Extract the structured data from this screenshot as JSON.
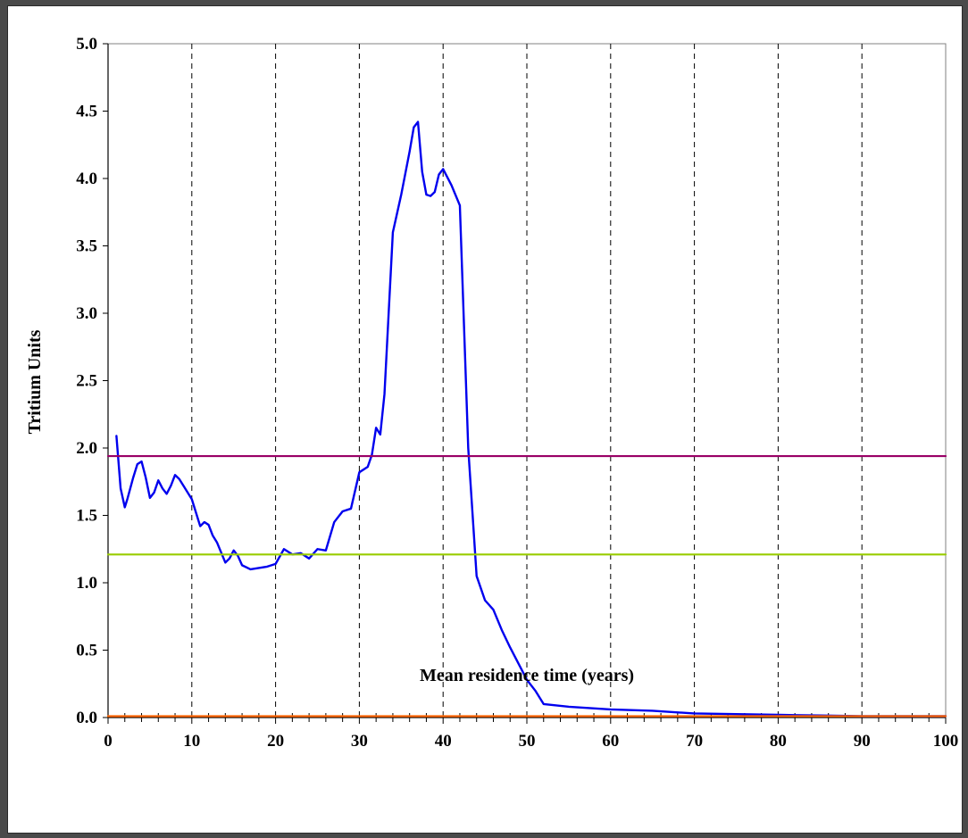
{
  "chart_data": {
    "type": "line",
    "xlabel": "Mean residence time (years)",
    "ylabel": "Tritium Units",
    "xlim": [
      0,
      100
    ],
    "ylim": [
      0,
      5
    ],
    "x_ticks": [
      "0",
      "10",
      "20",
      "30",
      "40",
      "50",
      "60",
      "70",
      "80",
      "90",
      "100"
    ],
    "y_ticks": [
      "0.0",
      "0.5",
      "1.0",
      "1.5",
      "2.0",
      "2.5",
      "3.0",
      "3.5",
      "4.0",
      "4.5",
      "5.0"
    ],
    "grid": "vertical dashed",
    "series": [
      {
        "color": "#0000ee",
        "x": [
          1,
          1.5,
          2,
          2.3,
          3,
          3.5,
          4,
          4.5,
          5,
          5.5,
          6,
          6.5,
          7,
          7.5,
          8,
          8.5,
          9,
          10,
          11,
          11.5,
          12,
          12.5,
          13,
          14,
          14.5,
          15,
          15.5,
          16,
          17,
          18,
          19,
          20,
          21,
          22,
          23,
          24,
          25,
          26,
          27,
          28,
          29,
          30,
          31,
          31.5,
          32,
          32.5,
          33,
          33.5,
          34,
          35,
          36,
          36.5,
          37,
          37.5,
          38,
          38.5,
          39,
          39.5,
          40,
          41,
          42,
          43,
          44,
          45,
          46,
          47,
          48,
          49,
          50,
          51,
          52,
          55,
          60,
          65,
          70,
          75,
          80,
          85,
          90,
          95,
          100
        ],
        "y": [
          2.09,
          1.7,
          1.56,
          1.62,
          1.78,
          1.88,
          1.9,
          1.78,
          1.63,
          1.67,
          1.76,
          1.7,
          1.66,
          1.72,
          1.8,
          1.77,
          1.72,
          1.62,
          1.42,
          1.45,
          1.43,
          1.35,
          1.3,
          1.15,
          1.18,
          1.24,
          1.2,
          1.13,
          1.1,
          1.11,
          1.12,
          1.14,
          1.25,
          1.21,
          1.22,
          1.18,
          1.25,
          1.24,
          1.45,
          1.53,
          1.55,
          1.82,
          1.86,
          1.95,
          2.15,
          2.1,
          2.4,
          3.0,
          3.6,
          3.88,
          4.2,
          4.38,
          4.42,
          4.05,
          3.88,
          3.87,
          3.9,
          4.03,
          4.07,
          3.95,
          3.8,
          2.0,
          1.05,
          0.87,
          0.8,
          0.65,
          0.52,
          0.4,
          0.28,
          0.2,
          0.1,
          0.08,
          0.06,
          0.05,
          0.03,
          0.025,
          0.02,
          0.015,
          0.01,
          0.01,
          0.01
        ]
      },
      {
        "color": "#990066",
        "x": [
          0,
          100
        ],
        "y": [
          1.94,
          1.94
        ]
      },
      {
        "color": "#99cc00",
        "x": [
          0,
          100
        ],
        "y": [
          1.21,
          1.21
        ]
      },
      {
        "color": "#ff6600",
        "x": [
          0,
          100
        ],
        "y": [
          0.01,
          0.01
        ]
      }
    ]
  }
}
